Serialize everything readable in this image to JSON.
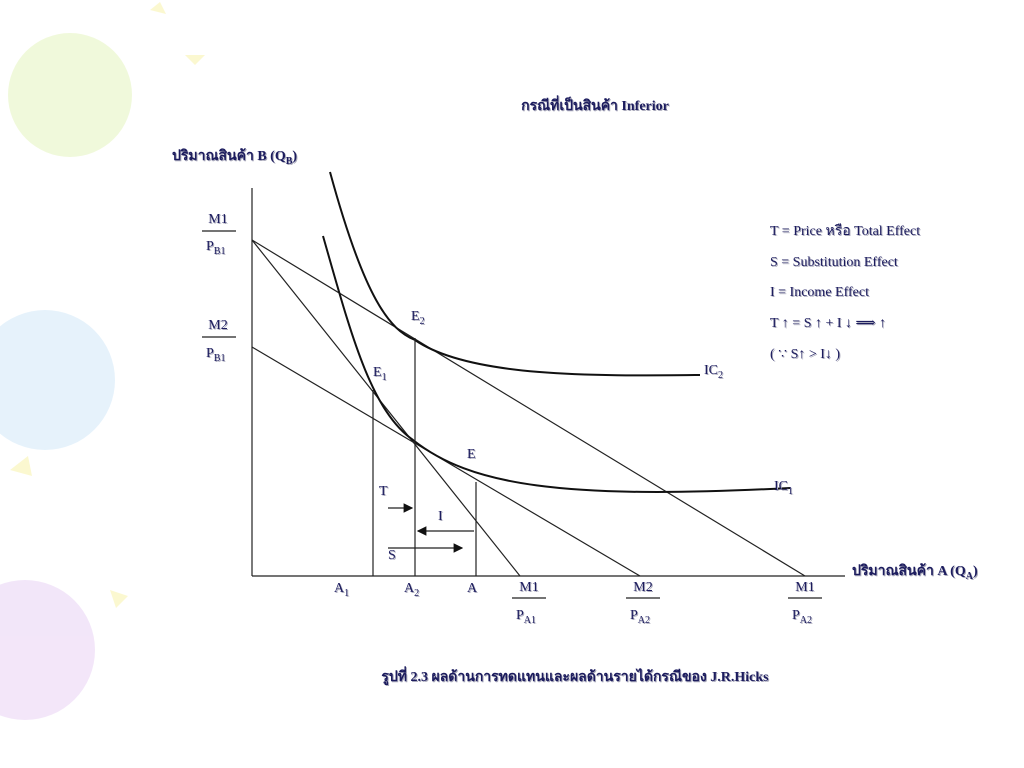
{
  "title": "กรณีที่เป็นสินค้า Inferior",
  "y_label": {
    "text": "ปริมาณสินค้า B (Q",
    "sub": "B",
    "end": ")"
  },
  "x_label": {
    "text": "ปริมาณสินค้า A (Q",
    "sub": "A",
    "end": ")"
  },
  "fractions": [
    {
      "num": "M1",
      "den": "P",
      "den_sub": "B1"
    },
    {
      "num": "M2",
      "den": "P",
      "den_sub": "B1"
    },
    {
      "num": "M1",
      "den": "P",
      "den_sub": "A1"
    },
    {
      "num": "M2",
      "den": "P",
      "den_sub": "A2"
    },
    {
      "num": "M1",
      "den": "P",
      "den_sub": "A2"
    }
  ],
  "points": [
    {
      "text": "E",
      "sub": "2"
    },
    {
      "text": "E",
      "sub": "1"
    },
    {
      "text": "E",
      "sub": ""
    },
    {
      "text": "IC",
      "sub": "2"
    },
    {
      "text": "IC",
      "sub": "1"
    },
    {
      "text": "A",
      "sub": "1"
    },
    {
      "text": "A",
      "sub": "2"
    },
    {
      "text": "A",
      "sub": ""
    }
  ],
  "effects": [
    "T",
    "I",
    "S"
  ],
  "legend": [
    "T = Price หรือ Total Effect",
    "S = Substitution Effect",
    "I = Income Effect",
    "T ↑  = S ↑ + I ↓ ⟹ ↑",
    "( ∵ S↑ > I↓ )"
  ],
  "caption": "รูปที่ 2.3  ผลด้านการทดแทนและผลด้านรายได้กรณีของ J.R.Hicks"
}
